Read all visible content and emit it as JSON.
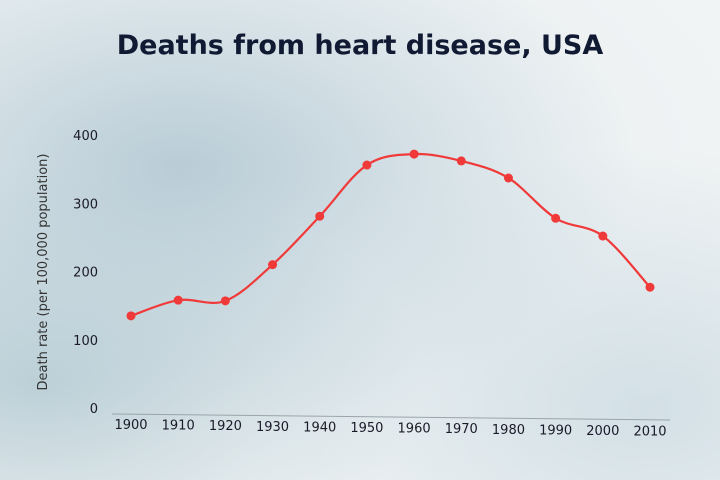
{
  "chart_data": {
    "type": "line",
    "title": "Deaths from heart disease, USA",
    "xlabel": "",
    "ylabel": "Death rate (per 100,000 population)",
    "x": [
      "1900",
      "1910",
      "1920",
      "1930",
      "1940",
      "1950",
      "1960",
      "1970",
      "1980",
      "1990",
      "2000",
      "2010"
    ],
    "series": [
      {
        "values": [
          135,
          158,
          157,
          210,
          281,
          356,
          372,
          362,
          337,
          278,
          252,
          177
        ],
        "color": "#f03a3a"
      }
    ],
    "ylim": [
      0,
      400
    ],
    "yticks": [
      0,
      100,
      200,
      300,
      400
    ],
    "grid": false,
    "smooth": true
  }
}
